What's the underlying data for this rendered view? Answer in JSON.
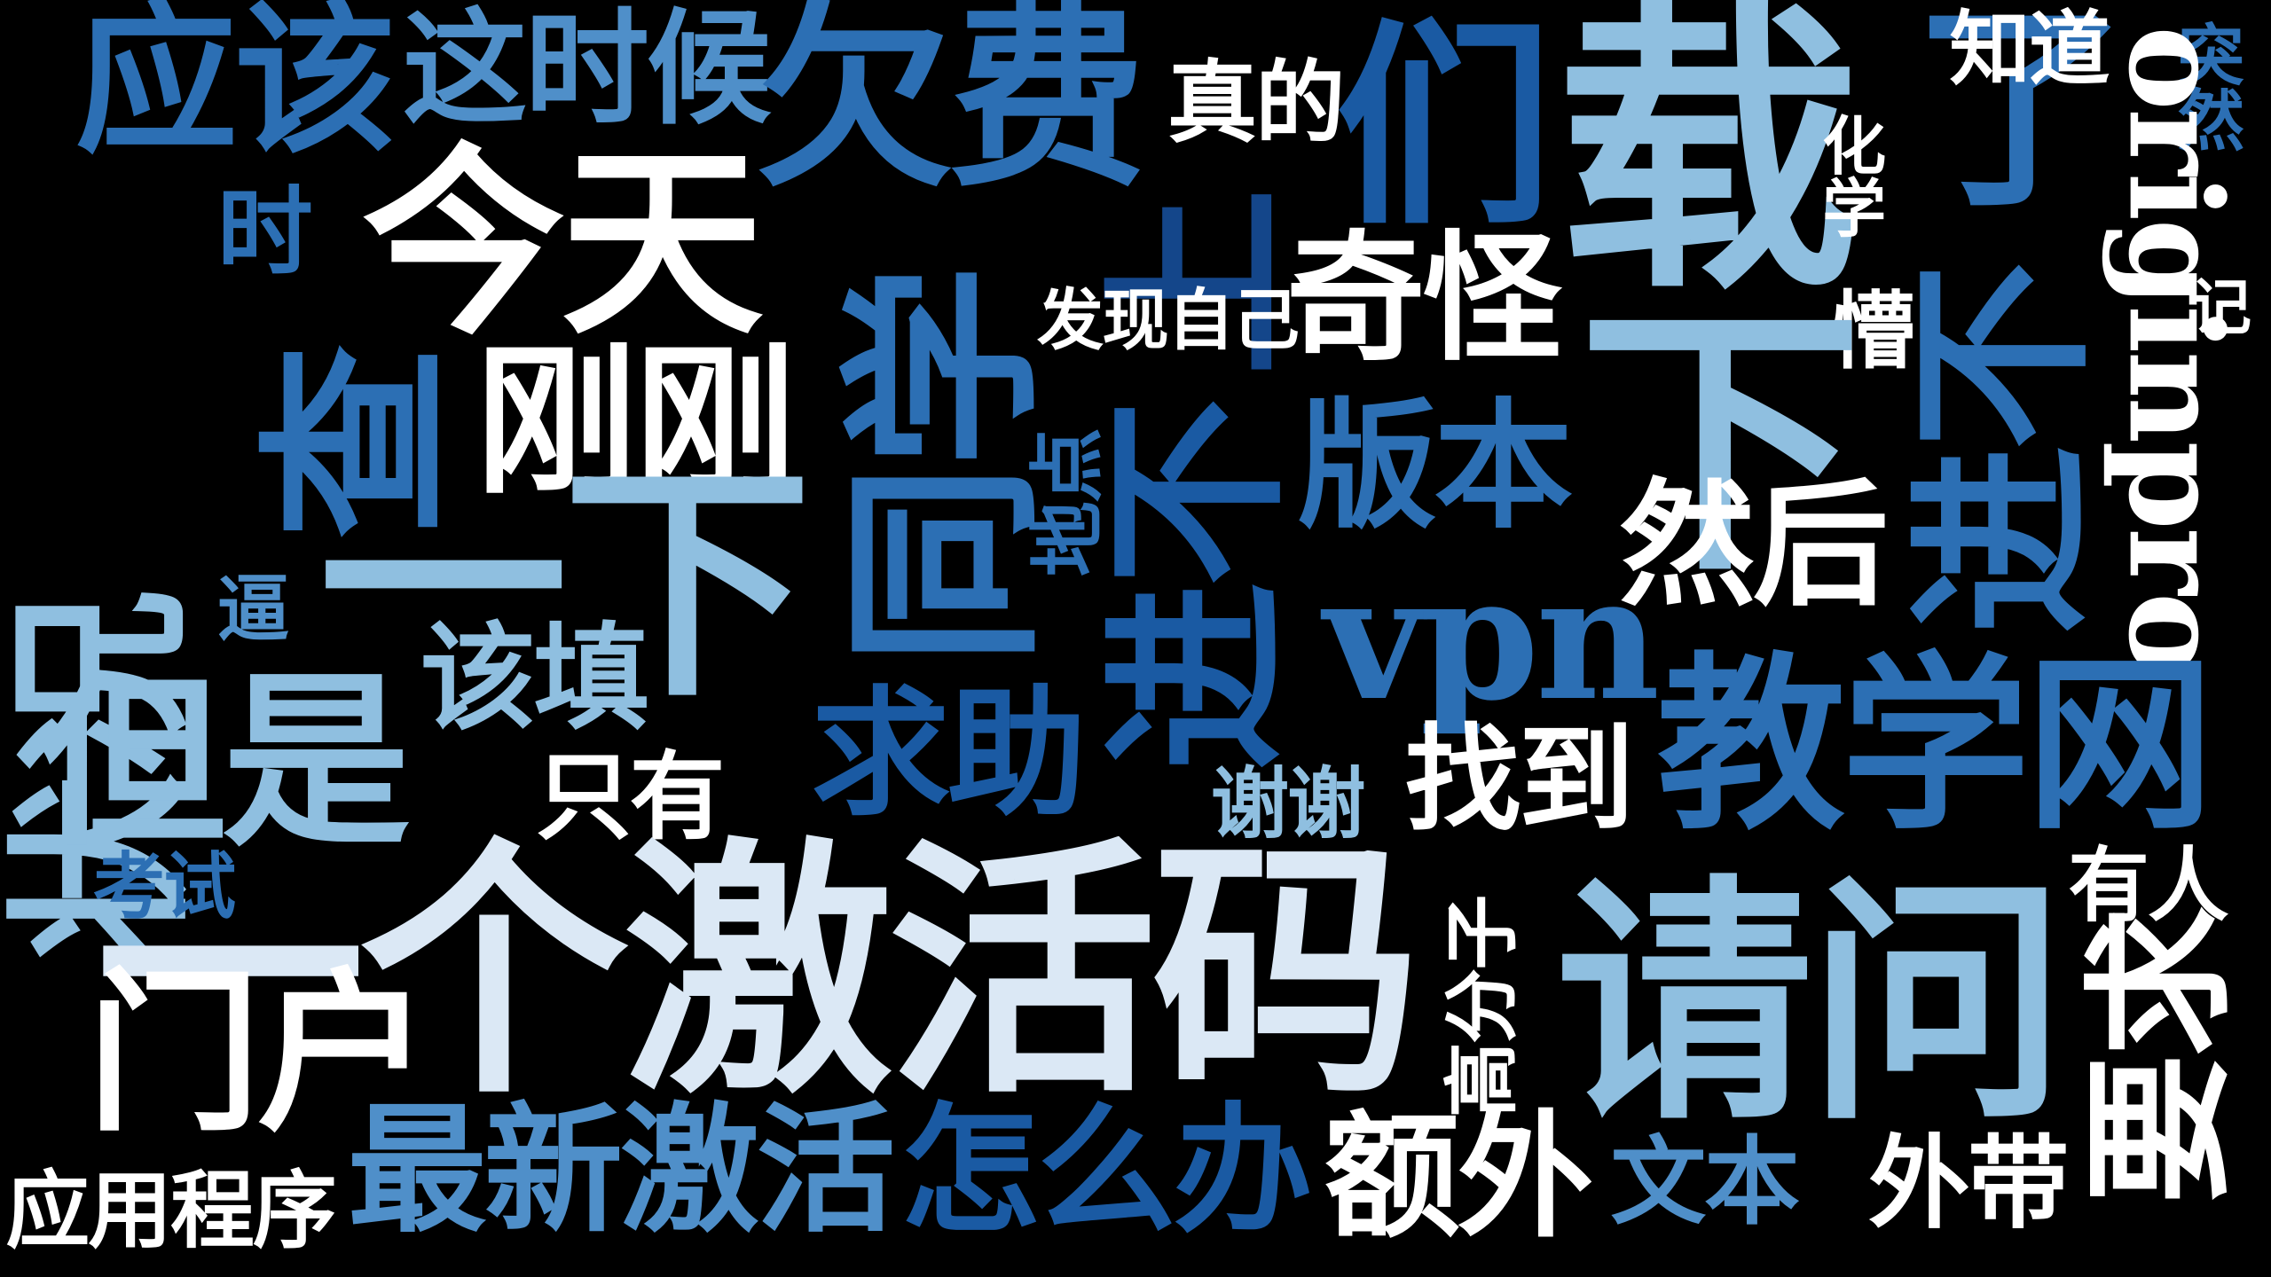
{
  "palette": {
    "background": "#000000",
    "white": "#ffffff",
    "pale": "#dbe8f5",
    "light": "#8fbfe0",
    "mid": "#4f8fc9",
    "blue": "#2c6fb4",
    "deep": "#1a5aa3",
    "navy": "#14468a"
  },
  "words": {
    "yinggai": "应该",
    "zheshihou": "这时候",
    "qianfei": "欠费",
    "zhende": "真的",
    "men": "们",
    "zai": "载",
    "le": "了",
    "zhidao": "知道",
    "huaxue": "化学",
    "turan": "突然",
    "originpro": "originpro",
    "mang": "懵",
    "ji": "记",
    "zhuangkuang": "状况",
    "shi": "时",
    "jintian": "今天",
    "tongxue": "同学",
    "shang": "上",
    "faxianziji": "发现自己",
    "qiguai": "奇怪",
    "xia_right": "下",
    "cha": "查",
    "ganggang": "刚刚",
    "didian": "地点",
    "jinbuqu1": "进不",
    "banben": "版本",
    "ranhou": "然后",
    "jinbuqu2": "进不",
    "yixia": "一下",
    "bi": "逼",
    "gaitian": "该填",
    "vpn": "vpn",
    "danshi": "但是",
    "qiuzhu": "求助",
    "zhaodao": "找到",
    "jiaoxuewang": "教学网",
    "zhiyou": "只有",
    "xiexie": "谢谢",
    "kaoshi": "考试",
    "yigejihuoma": "一个激活码",
    "gaofenzi": "高分子",
    "youren": "有人",
    "qingwen": "请问",
    "menhu": "门户",
    "yaoqiu": "要求",
    "zuixinjihuo": "最新激活",
    "zenmeban": "怎么办",
    "ewai": "额外",
    "wenben": "文本",
    "waidai": "外带",
    "yingyongchengxu": "应用程序"
  }
}
